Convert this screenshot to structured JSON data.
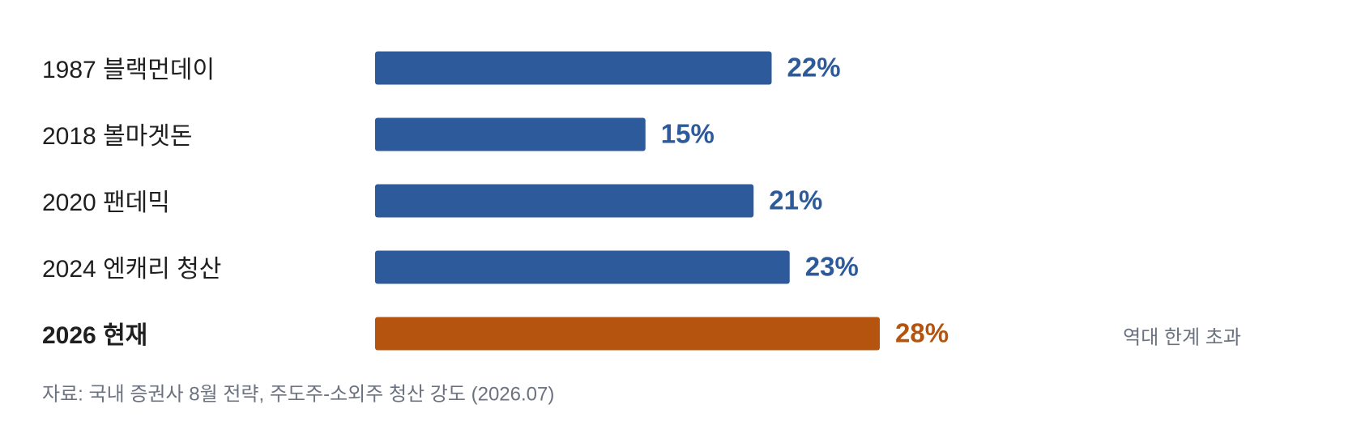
{
  "chart_data": {
    "type": "bar",
    "orientation": "horizontal",
    "categories": [
      "1987 블랙먼데이",
      "2018 볼마겟돈",
      "2020 팬데믹",
      "2024 엔캐리 청산",
      "2026 현재"
    ],
    "values": [
      22,
      15,
      21,
      23,
      28
    ],
    "value_labels": [
      "22%",
      "15%",
      "21%",
      "23%",
      "28%"
    ],
    "colors": [
      "#2d5a9b",
      "#2d5a9b",
      "#2d5a9b",
      "#2d5a9b",
      "#b5540f"
    ],
    "annotation": "역대 한계 초과",
    "source": "자료: 국내 증권사 8월 전략, 주도주-소외주 청산 강도 (2026.07)"
  }
}
